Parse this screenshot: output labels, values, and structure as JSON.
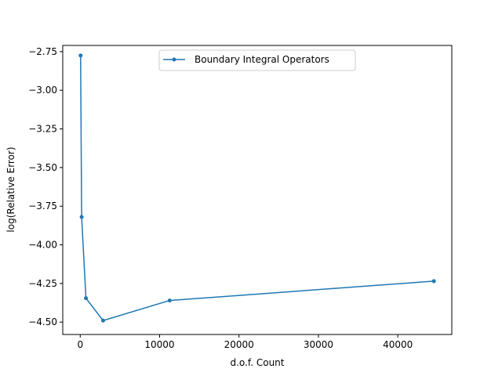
{
  "chart_data": {
    "type": "line",
    "xlabel": "d.o.f. Count",
    "ylabel": "log(Relative Error)",
    "xlim": [
      -2200,
      46800
    ],
    "ylim": [
      -4.58,
      -2.71
    ],
    "x_ticks": [
      0,
      10000,
      20000,
      30000,
      40000
    ],
    "x_tick_labels": [
      "0",
      "10000",
      "20000",
      "30000",
      "40000"
    ],
    "y_ticks": [
      -2.75,
      -3.0,
      -3.25,
      -3.5,
      -3.75,
      -4.0,
      -4.25,
      -4.5
    ],
    "y_tick_labels": [
      "−2.75",
      "−3.00",
      "−3.25",
      "−3.50",
      "−3.75",
      "−4.00",
      "−4.25",
      "−4.50"
    ],
    "grid": false,
    "legend_position": "top-center",
    "series": [
      {
        "name": "Boundary Integral Operators",
        "color": "#1f77b4",
        "marker": "point",
        "x": [
          48,
          180,
          720,
          2880,
          11265,
          44545
        ],
        "y": [
          -2.775,
          -3.82,
          -4.345,
          -4.49,
          -4.36,
          -4.235
        ]
      }
    ]
  }
}
